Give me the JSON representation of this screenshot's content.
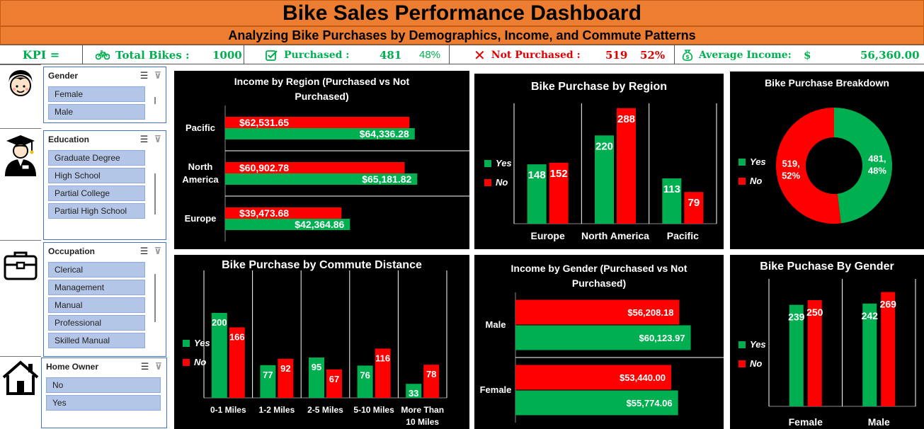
{
  "header": {
    "title": "Bike Sales Performance Dashboard",
    "subtitle": "Analyzing Bike Purchases by Demographics, Income, and Commute Patterns"
  },
  "kpi": {
    "label": "KPI =",
    "total_label": "Total Bikes :",
    "total_value": "1000",
    "purchased_label": "Purchased :",
    "purchased_value": "481",
    "purchased_pct": "48%",
    "not_purchased_label": "Not Purchased :",
    "not_purchased_value": "519",
    "not_purchased_pct": "52%",
    "avg_income_label": "Average Income:",
    "avg_income_currency": "$",
    "avg_income_value": "56,360.00",
    "icons": [
      "bicycle-icon",
      "checkbox-icon",
      "cross-icon",
      "money-bag-icon"
    ]
  },
  "colors": {
    "yes": "#00b050",
    "no": "#ff0000",
    "accent": "#ed7d31",
    "slicer_item": "#b4c6e7"
  },
  "slicers": {
    "gender": {
      "title": "Gender",
      "items": [
        "Female",
        "Male"
      ],
      "icon": "person-icon"
    },
    "education": {
      "title": "Education",
      "items": [
        "Graduate Degree",
        "High School",
        "Partial College",
        "Partial High School"
      ],
      "icon": "graduate-icon"
    },
    "occupation": {
      "title": "Occupation",
      "items": [
        "Clerical",
        "Management",
        "Manual",
        "Professional",
        "Skilled Manual"
      ],
      "icon": "briefcase-icon"
    },
    "home_owner": {
      "title": "Home Owner",
      "items": [
        "No",
        "Yes"
      ],
      "icon": "house-icon"
    }
  },
  "legend": {
    "yes": "Yes",
    "no": "No"
  },
  "chart_data": [
    {
      "id": "income_region",
      "type": "bar",
      "orientation": "horizontal",
      "title": "Income by Region (Purchased vs Not Purchased)",
      "categories": [
        "Pacific",
        "North America",
        "Europe"
      ],
      "series": [
        {
          "name": "No",
          "values": [
            62531.65,
            60902.78,
            39473.68
          ]
        },
        {
          "name": "Yes",
          "values": [
            64336.28,
            65181.82,
            42364.86
          ]
        }
      ],
      "labels": {
        "No": [
          "$62,531.65",
          "$60,902.78",
          "$39,473.68"
        ],
        "Yes": [
          "$64,336.28",
          "$65,181.82",
          "$42,364.86"
        ]
      }
    },
    {
      "id": "purchase_region",
      "type": "bar",
      "title": "Bike Purchase by Region",
      "categories": [
        "Europe",
        "North America",
        "Pacific"
      ],
      "series": [
        {
          "name": "Yes",
          "values": [
            148,
            220,
            113
          ]
        },
        {
          "name": "No",
          "values": [
            152,
            288,
            79
          ]
        }
      ]
    },
    {
      "id": "breakdown",
      "type": "pie",
      "title": "Bike Purchase Breakdown",
      "slices": [
        {
          "name": "Yes",
          "value": 481,
          "label": [
            "481,",
            "48%"
          ]
        },
        {
          "name": "No",
          "value": 519,
          "label": [
            "519,",
            "52%"
          ]
        }
      ]
    },
    {
      "id": "commute",
      "type": "bar",
      "title": "Bike Purchase by Commute Distance",
      "categories": [
        "0-1 Miles",
        "1-2 Miles",
        "2-5 Miles",
        "5-10 Miles",
        "More Than 10 Miles"
      ],
      "series": [
        {
          "name": "Yes",
          "values": [
            200,
            77,
            95,
            76,
            33
          ]
        },
        {
          "name": "No",
          "values": [
            166,
            92,
            67,
            116,
            78
          ]
        }
      ]
    },
    {
      "id": "income_gender",
      "type": "bar",
      "orientation": "horizontal",
      "title": "Income by Gender (Purchased vs Not Purchased)",
      "categories": [
        "Male",
        "Female"
      ],
      "series": [
        {
          "name": "No",
          "values": [
            56208.18,
            53440.0
          ]
        },
        {
          "name": "Yes",
          "values": [
            60123.97,
            55774.06
          ]
        }
      ],
      "labels": {
        "No": [
          "$56,208.18",
          "$53,440.00"
        ],
        "Yes": [
          "$60,123.97",
          "$55,774.06"
        ]
      }
    },
    {
      "id": "purchase_gender",
      "type": "bar",
      "title": "Bike Puchase By Gender",
      "categories": [
        "Female",
        "Male"
      ],
      "series": [
        {
          "name": "Yes",
          "values": [
            239,
            242
          ]
        },
        {
          "name": "No",
          "values": [
            250,
            269
          ]
        }
      ]
    }
  ]
}
